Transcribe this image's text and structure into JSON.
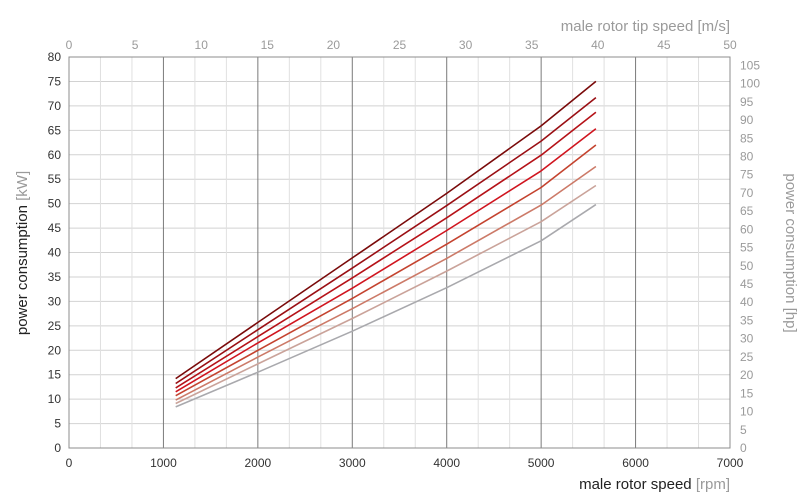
{
  "chart_data": {
    "type": "line",
    "xlabel": "male rotor speed",
    "xlabel_unit": "[rpm]",
    "ylabel": "power consumption",
    "ylabel_unit": "[kW]",
    "x2label": "male rotor tip speed",
    "x2label_unit": "[m/s]",
    "y2label": "power consumption",
    "y2label_unit": "[hp]",
    "xlim": [
      0,
      7000
    ],
    "ylim": [
      0,
      80
    ],
    "x2lim": [
      0,
      50
    ],
    "y2lim": [
      0,
      107.3
    ],
    "xticks": [
      0,
      1000,
      2000,
      3000,
      4000,
      5000,
      6000,
      7000
    ],
    "yticks": [
      0,
      5,
      10,
      15,
      20,
      25,
      30,
      35,
      40,
      45,
      50,
      55,
      60,
      65,
      70,
      75,
      80
    ],
    "x2ticks": [
      0,
      5,
      10,
      15,
      20,
      25,
      30,
      35,
      40,
      45,
      50
    ],
    "y2ticks": [
      0,
      5,
      10,
      15,
      20,
      25,
      30,
      35,
      40,
      45,
      50,
      55,
      60,
      65,
      70,
      75,
      80,
      85,
      90,
      95,
      100,
      105
    ],
    "grid": true,
    "legend": "none",
    "series": [
      {
        "color": "#7a0a0a",
        "x": [
          1130,
          2000,
          3000,
          4000,
          5000,
          5580
        ],
        "y": [
          14.2,
          25.7,
          38.9,
          52.1,
          65.9,
          75.0
        ]
      },
      {
        "color": "#9a0f14",
        "x": [
          1130,
          2000,
          3000,
          4000,
          5000,
          5580
        ],
        "y": [
          13.2,
          24.2,
          36.8,
          49.6,
          62.8,
          71.7
        ]
      },
      {
        "color": "#b51218",
        "x": [
          1130,
          2000,
          3000,
          4000,
          5000,
          5580
        ],
        "y": [
          12.3,
          22.8,
          34.8,
          47.1,
          59.9,
          68.7
        ]
      },
      {
        "color": "#d0151f",
        "x": [
          1130,
          2000,
          3000,
          4000,
          5000,
          5580
        ],
        "y": [
          11.5,
          21.5,
          32.7,
          44.5,
          56.7,
          65.3
        ]
      },
      {
        "color": "#c4432f",
        "x": [
          1130,
          2000,
          3000,
          4000,
          5000,
          5580
        ],
        "y": [
          10.7,
          20.0,
          30.6,
          41.7,
          53.3,
          62.0
        ]
      },
      {
        "color": "#cc7a68",
        "x": [
          1130,
          2000,
          3000,
          4000,
          5000,
          5580
        ],
        "y": [
          9.8,
          18.6,
          28.5,
          38.8,
          49.7,
          57.6
        ]
      },
      {
        "color": "#caa39a",
        "x": [
          1130,
          2000,
          3000,
          4000,
          5000,
          5580
        ],
        "y": [
          9.1,
          17.2,
          26.5,
          36.2,
          46.3,
          53.7
        ]
      },
      {
        "color": "#a9a9ad",
        "x": [
          1130,
          2000,
          3000,
          4000,
          5000,
          5580
        ],
        "y": [
          8.4,
          15.5,
          23.9,
          32.8,
          42.4,
          49.8
        ]
      }
    ]
  }
}
